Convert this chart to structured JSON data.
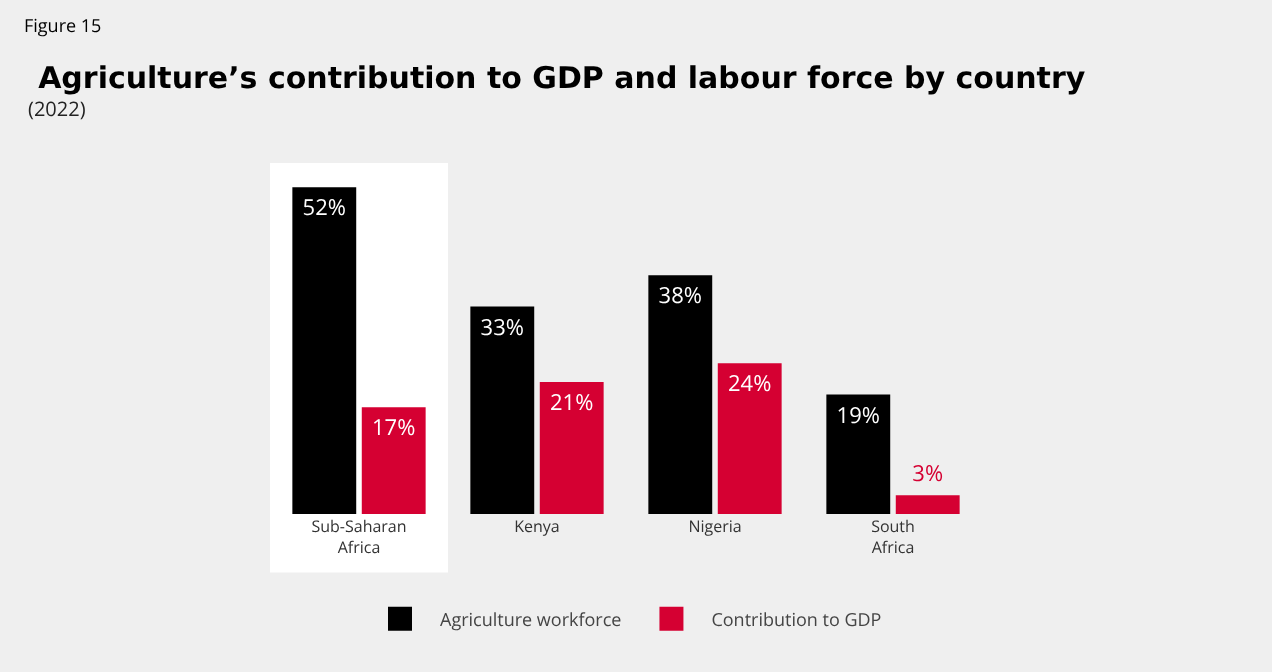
{
  "chart_data": {
    "type": "bar",
    "title": "Agriculture’s contribution to GDP and labour force by country",
    "subtitle": "(2022)",
    "annotations": [
      "Figure 15"
    ],
    "categories": [
      "Sub-Saharan Africa",
      "Kenya",
      "Nigeria",
      "South Africa"
    ],
    "series": [
      {
        "name": "Agriculture workforce",
        "color": "#000000",
        "values": [
          52,
          33,
          38,
          19
        ],
        "value_labels": [
          "52%",
          "33%",
          "38%",
          "19%"
        ]
      },
      {
        "name": "Contribution to GDP",
        "color": "#d50032",
        "values": [
          17,
          21,
          24,
          3
        ],
        "value_labels": [
          "17%",
          "21%",
          "24%",
          "3%"
        ]
      }
    ],
    "bands": [
      {
        "axis": "x",
        "from": "Sub-Saharan Africa",
        "to": "Sub-Saharan Africa",
        "color": "#ffffff"
      }
    ],
    "grid": false,
    "legend": "bottom"
  }
}
